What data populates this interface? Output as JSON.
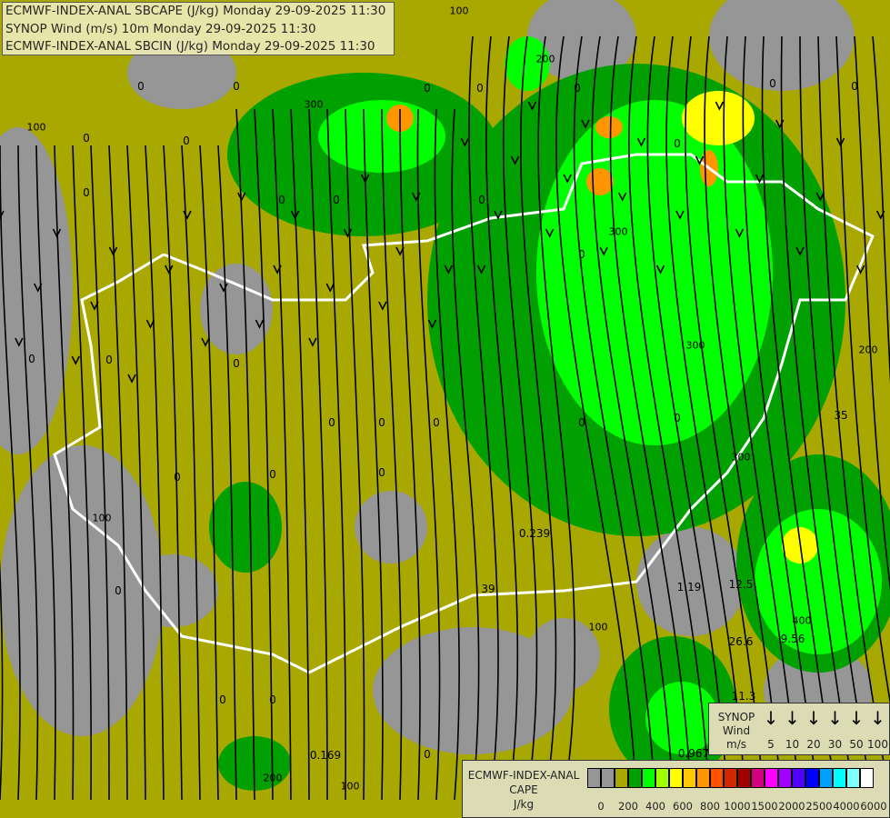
{
  "header": {
    "lines": [
      "ECMWF-INDEX-ANAL SBCAPE (J/kg) Monday 29-09-2025 11:30",
      "SYNOP Wind (m/s) 10m Monday 29-09-2025 11:30",
      "ECMWF-INDEX-ANAL SBCIN (J/kg) Monday 29-09-2025 11:30"
    ]
  },
  "wind_legend": {
    "title_lines": [
      "SYNOP",
      "Wind",
      "m/s"
    ],
    "values": [
      "5",
      "10",
      "20",
      "30",
      "50",
      "100"
    ],
    "arrow_icon": "down-arrow-icon"
  },
  "cape_legend": {
    "title_lines": [
      "ECMWF-INDEX-ANAL",
      "CAPE",
      "J/kg"
    ],
    "colors": [
      "#969696",
      "#969696",
      "#a8a800",
      "#00a000",
      "#00ff00",
      "#a0ff00",
      "#ffff00",
      "#ffc800",
      "#ff9600",
      "#ff5000",
      "#d22800",
      "#a00000",
      "#d2007f",
      "#ff00ff",
      "#a000ff",
      "#5000ff",
      "#0000ff",
      "#00a0ff",
      "#00ffff",
      "#80ffff",
      "#ffffff"
    ],
    "ticks": [
      "0",
      "200",
      "400",
      "600",
      "800",
      "1000",
      "1500",
      "2000",
      "2500",
      "4000",
      "6000"
    ]
  },
  "map": {
    "colors": {
      "low_cape": "#a8a800",
      "zero": "#969696",
      "green": "#00a000",
      "lime": "#00ff00",
      "yellow": "#ffff00",
      "orange": "#ff9600",
      "border": "#ffffff",
      "rivers": "#4a78c8",
      "roads": "#f0d8a8"
    },
    "station_values": [
      "0",
      "0",
      "0",
      "0",
      "0",
      "0",
      "0",
      "0",
      "0",
      "0",
      "0",
      "0",
      "0",
      "0",
      "0",
      "0",
      "0",
      "0",
      "0",
      "0",
      "0",
      "0",
      "0",
      "0",
      "0",
      "0",
      "0",
      "0",
      "0",
      "0",
      "0.239",
      "1.19",
      "12.5",
      "26.6",
      "9.56",
      "11.3",
      "0.967",
      "0.169",
      "35",
      "39"
    ],
    "contour_labels": [
      "100",
      "100",
      "200",
      "300",
      "300",
      "300",
      "400",
      "100",
      "100",
      "200",
      "300",
      "200",
      "100"
    ]
  }
}
